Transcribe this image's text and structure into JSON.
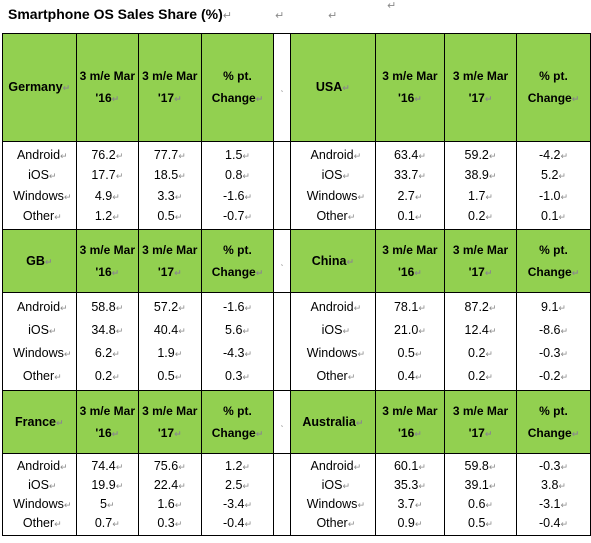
{
  "title": "Smartphone OS Sales Share (%)",
  "marks": {
    "para": "↵",
    "small": "↵",
    "tick": "ˎ"
  },
  "blocks": [
    {
      "left": {
        "country": "Germany",
        "headers": [
          "3 m/e Mar '16",
          "3 m/e Mar '17",
          "% pt. Change"
        ],
        "rows": [
          [
            "Android",
            "76.2",
            "77.7",
            "1.5"
          ],
          [
            "iOS",
            "17.7",
            "18.5",
            "0.8"
          ],
          [
            "Windows",
            "4.9",
            "3.3",
            "-1.6"
          ],
          [
            "Other",
            "1.2",
            "0.5",
            "-0.7"
          ]
        ]
      },
      "right": {
        "country": "USA",
        "headers": [
          "3 m/e Mar '16",
          "3 m/e Mar '17",
          "% pt. Change"
        ],
        "rows": [
          [
            "Android",
            "63.4",
            "59.2",
            "-4.2"
          ],
          [
            "iOS",
            "33.7",
            "38.9",
            "5.2"
          ],
          [
            "Windows",
            "2.7",
            "1.7",
            "-1.0"
          ],
          [
            "Other",
            "0.1",
            "0.2",
            "0.1"
          ]
        ]
      }
    },
    {
      "left": {
        "country": "GB",
        "headers": [
          "3 m/e Mar '16",
          "3 m/e Mar '17",
          "% pt. Change"
        ],
        "rows": [
          [
            "Android",
            "58.8",
            "57.2",
            "-1.6"
          ],
          [
            "iOS",
            "34.8",
            "40.4",
            "5.6"
          ],
          [
            "Windows",
            "6.2",
            "1.9",
            "-4.3"
          ],
          [
            "Other",
            "0.2",
            "0.5",
            "0.3"
          ]
        ]
      },
      "right": {
        "country": "China",
        "headers": [
          "3 m/e Mar '16",
          "3 m/e Mar '17",
          "% pt. Change"
        ],
        "rows": [
          [
            "Android",
            "78.1",
            "87.2",
            "9.1"
          ],
          [
            "iOS",
            "21.0",
            "12.4",
            "-8.6"
          ],
          [
            "Windows",
            "0.5",
            "0.2",
            "-0.3"
          ],
          [
            "Other",
            "0.4",
            "0.2",
            "-0.2"
          ]
        ]
      }
    },
    {
      "left": {
        "country": "France",
        "headers": [
          "3 m/e Mar '16",
          "3 m/e Mar '17",
          "% pt. Change"
        ],
        "rows": [
          [
            "Android",
            "74.4",
            "75.6",
            "1.2"
          ],
          [
            "iOS",
            "19.9",
            "22.4",
            "2.5"
          ],
          [
            "Windows",
            "5",
            "1.6",
            "-3.4"
          ],
          [
            "Other",
            "0.7",
            "0.3",
            "-0.4"
          ]
        ]
      },
      "right": {
        "country": "Australia",
        "headers": [
          "3 m/e Mar '16",
          "3 m/e Mar '17",
          "% pt. Change"
        ],
        "rows": [
          [
            "Android",
            "60.1",
            "59.8",
            "-0.3"
          ],
          [
            "iOS",
            "35.3",
            "39.1",
            "3.8"
          ],
          [
            "Windows",
            "3.7",
            "0.6",
            "-3.1"
          ],
          [
            "Other",
            "0.9",
            "0.5",
            "-0.4"
          ]
        ]
      }
    }
  ]
}
